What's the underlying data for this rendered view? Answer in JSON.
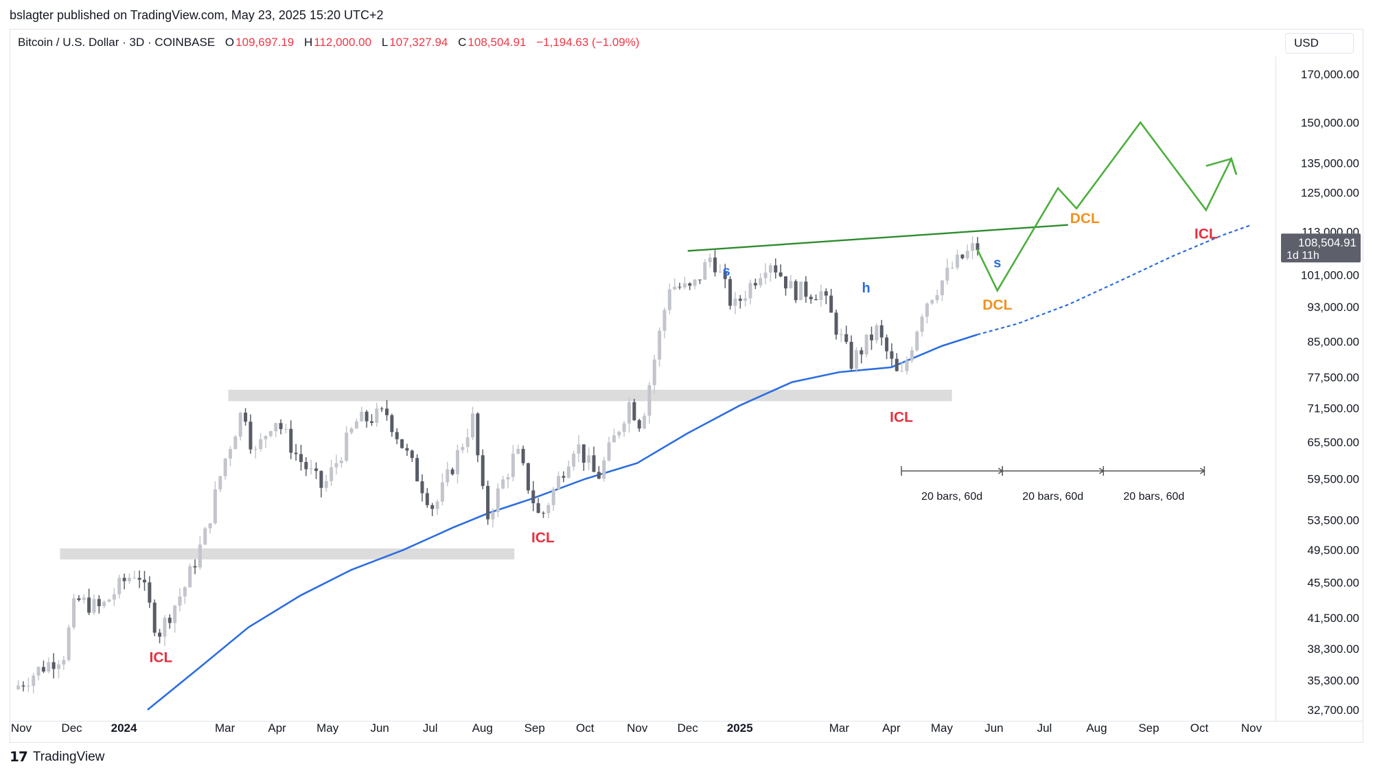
{
  "header": {
    "published": "bslagter published on TradingView.com, May 23, 2025 15:20 UTC+2",
    "symbol": "Bitcoin / U.S. Dollar · 3D · COINBASE",
    "o_label": "O",
    "o_value": "109,697.19",
    "h_label": "H",
    "h_value": "112,000.00",
    "l_label": "L",
    "l_value": "107,327.94",
    "c_label": "C",
    "c_value": "108,504.91",
    "change": "−1,194.63 (−1.09%)",
    "currency": "USD"
  },
  "footer": {
    "brand": "TradingView"
  },
  "colors": {
    "up": "#c3c5cc",
    "down": "#585c66",
    "ma": "#2a6de0",
    "projection": "#4caf3c",
    "icl": "#e5303f",
    "dcl": "#f0921e",
    "cycle_label": "#2a6de0",
    "zone": "#dcdcdc",
    "badge": "#5d606b"
  },
  "chart_data": {
    "type": "candlestick",
    "symbol": "BTC/USD",
    "timeframe": "3D",
    "y_scale": "log",
    "ylim": [
      32700,
      170000
    ],
    "y_ticks": [
      170000,
      150000,
      135000,
      125000,
      113000,
      101000,
      93000,
      85000,
      77500,
      71500,
      65500,
      59500,
      53500,
      49500,
      45500,
      41500,
      38300,
      35300,
      32700
    ],
    "y_tick_labels": [
      "170,000.00",
      "150,000.00",
      "135,000.00",
      "125,000.00",
      "113,000.00",
      "101,000.00",
      "93,000.00",
      "85,000.00",
      "77,500.00",
      "71,500.00",
      "65,500.00",
      "59,500.00",
      "53,500.00",
      "49,500.00",
      "45,500.00",
      "41,500.00",
      "38,300.00",
      "35,300.00",
      "32,700.00"
    ],
    "x_ticks": [
      {
        "label": "Nov",
        "x": "2023-11-01",
        "bold": false
      },
      {
        "label": "Dec",
        "x": "2023-12-01",
        "bold": false
      },
      {
        "label": "2024",
        "x": "2024-01-01",
        "bold": true
      },
      {
        "label": "Mar",
        "x": "2024-03-01",
        "bold": false
      },
      {
        "label": "Apr",
        "x": "2024-04-01",
        "bold": false
      },
      {
        "label": "May",
        "x": "2024-05-01",
        "bold": false
      },
      {
        "label": "Jun",
        "x": "2024-06-01",
        "bold": false
      },
      {
        "label": "Jul",
        "x": "2024-07-01",
        "bold": false
      },
      {
        "label": "Aug",
        "x": "2024-08-01",
        "bold": false
      },
      {
        "label": "Sep",
        "x": "2024-09-01",
        "bold": false
      },
      {
        "label": "Oct",
        "x": "2024-10-01",
        "bold": false
      },
      {
        "label": "Nov",
        "x": "2024-11-01",
        "bold": false
      },
      {
        "label": "Dec",
        "x": "2024-12-01",
        "bold": false
      },
      {
        "label": "2025",
        "x": "2025-01-01",
        "bold": true
      },
      {
        "label": "Mar",
        "x": "2025-03-01",
        "bold": false
      },
      {
        "label": "Apr",
        "x": "2025-04-01",
        "bold": false
      },
      {
        "label": "May",
        "x": "2025-05-01",
        "bold": false
      },
      {
        "label": "Jun",
        "x": "2025-06-01",
        "bold": false
      },
      {
        "label": "Jul",
        "x": "2025-07-01",
        "bold": false
      },
      {
        "label": "Aug",
        "x": "2025-08-01",
        "bold": false
      },
      {
        "label": "Sep",
        "x": "2025-09-01",
        "bold": false
      },
      {
        "label": "Oct",
        "x": "2025-10-01",
        "bold": false
      },
      {
        "label": "Nov",
        "x": "2025-11-01",
        "bold": false
      }
    ],
    "price_path": [
      [
        "2023-10-29",
        34500
      ],
      [
        "2023-11-15",
        36500
      ],
      [
        "2023-11-28",
        37800
      ],
      [
        "2023-12-05",
        43500
      ],
      [
        "2023-12-20",
        42500
      ],
      [
        "2024-01-02",
        45500
      ],
      [
        "2024-01-11",
        47000
      ],
      [
        "2024-01-23",
        39800
      ],
      [
        "2024-02-08",
        45000
      ],
      [
        "2024-02-20",
        51500
      ],
      [
        "2024-03-02",
        62000
      ],
      [
        "2024-03-14",
        72000
      ],
      [
        "2024-03-20",
        63000
      ],
      [
        "2024-04-01",
        70000
      ],
      [
        "2024-04-15",
        63000
      ],
      [
        "2024-04-30",
        58000
      ],
      [
        "2024-05-20",
        69000
      ],
      [
        "2024-06-07",
        70500
      ],
      [
        "2024-06-24",
        60500
      ],
      [
        "2024-07-05",
        55000
      ],
      [
        "2024-07-28",
        69500
      ],
      [
        "2024-08-05",
        53500
      ],
      [
        "2024-08-23",
        64000
      ],
      [
        "2024-09-06",
        53500
      ],
      [
        "2024-09-27",
        65500
      ],
      [
        "2024-10-10",
        59500
      ],
      [
        "2024-10-29",
        72500
      ],
      [
        "2024-11-05",
        68500
      ],
      [
        "2024-11-22",
        98500
      ],
      [
        "2024-12-05",
        97000
      ],
      [
        "2024-12-17",
        106500
      ],
      [
        "2024-12-30",
        92500
      ],
      [
        "2025-01-20",
        105500
      ],
      [
        "2025-02-03",
        97000
      ],
      [
        "2025-02-20",
        96500
      ],
      [
        "2025-03-10",
        80500
      ],
      [
        "2025-03-25",
        87500
      ],
      [
        "2025-04-08",
        76500
      ],
      [
        "2025-04-22",
        93500
      ],
      [
        "2025-05-10",
        103500
      ],
      [
        "2025-05-22",
        108504.91
      ]
    ],
    "moving_average": [
      [
        "2024-01-15",
        32700
      ],
      [
        "2024-02-15",
        36500
      ],
      [
        "2024-03-15",
        40500
      ],
      [
        "2024-04-15",
        44000
      ],
      [
        "2024-05-15",
        47000
      ],
      [
        "2024-06-15",
        49500
      ],
      [
        "2024-07-15",
        52500
      ],
      [
        "2024-08-05",
        54500
      ],
      [
        "2024-08-30",
        56500
      ],
      [
        "2024-10-01",
        59500
      ],
      [
        "2024-11-01",
        62000
      ],
      [
        "2024-12-01",
        67000
      ],
      [
        "2025-01-01",
        72000
      ],
      [
        "2025-02-01",
        76500
      ],
      [
        "2025-03-01",
        78500
      ],
      [
        "2025-04-01",
        79500
      ],
      [
        "2025-05-01",
        84000
      ],
      [
        "2025-05-22",
        86500
      ]
    ],
    "moving_average_projection": [
      [
        "2025-05-22",
        86500
      ],
      [
        "2025-06-15",
        89000
      ],
      [
        "2025-07-15",
        93500
      ],
      [
        "2025-08-15",
        99500
      ],
      [
        "2025-09-15",
        106000
      ],
      [
        "2025-10-15",
        112000
      ],
      [
        "2025-11-01",
        115000
      ]
    ],
    "resistance_line": [
      [
        "2024-12-01",
        107500
      ],
      [
        "2025-07-15",
        115000
      ]
    ],
    "projection_path": [
      [
        "2025-05-22",
        108000
      ],
      [
        "2025-06-03",
        97000
      ],
      [
        "2025-07-09",
        126500
      ],
      [
        "2025-07-20",
        120000
      ],
      [
        "2025-08-27",
        150000
      ],
      [
        "2025-10-05",
        119500
      ],
      [
        "2025-10-20",
        136500
      ],
      [
        "2025-10-23",
        131000
      ]
    ],
    "zones": [
      {
        "x_range": [
          "2023-11-24",
          "2024-08-20"
        ],
        "y_range": [
          48300,
          49700
        ]
      },
      {
        "x_range": [
          "2024-03-03",
          "2025-05-07"
        ],
        "y_range": [
          72800,
          75000
        ]
      }
    ],
    "cycle_markers": [
      {
        "label": "ICL",
        "x": "2024-01-23",
        "y": 37000,
        "color_key": "icl"
      },
      {
        "label": "ICL",
        "x": "2024-09-06",
        "y": 50500,
        "color_key": "icl"
      },
      {
        "label": "ICL",
        "x": "2025-04-07",
        "y": 69000,
        "color_key": "icl"
      },
      {
        "label": "ICL",
        "x": "2025-10-05",
        "y": 111000,
        "color_key": "icl"
      },
      {
        "label": "DCL",
        "x": "2025-06-03",
        "y": 92300,
        "color_key": "dcl"
      },
      {
        "label": "DCL",
        "x": "2025-07-25",
        "y": 115500,
        "color_key": "dcl"
      },
      {
        "label": "s",
        "x": "2024-12-24",
        "y": 100800,
        "color_key": "cycle_label"
      },
      {
        "label": "h",
        "x": "2025-03-17",
        "y": 96500,
        "color_key": "cycle_label"
      },
      {
        "label": "s",
        "x": "2025-06-03",
        "y": 103000,
        "color_key": "cycle_label"
      }
    ],
    "bar_ranges": [
      {
        "x_range": [
          "2025-04-07",
          "2025-06-06"
        ],
        "label": "20 bars, 60d"
      },
      {
        "x_range": [
          "2025-06-06",
          "2025-08-05"
        ],
        "label": "20 bars, 60d"
      },
      {
        "x_range": [
          "2025-08-05",
          "2025-10-04"
        ],
        "label": "20 bars, 60d"
      }
    ],
    "price_label": {
      "value": "108,504.91",
      "sub": "1d 11h",
      "y": 108504.91
    }
  }
}
